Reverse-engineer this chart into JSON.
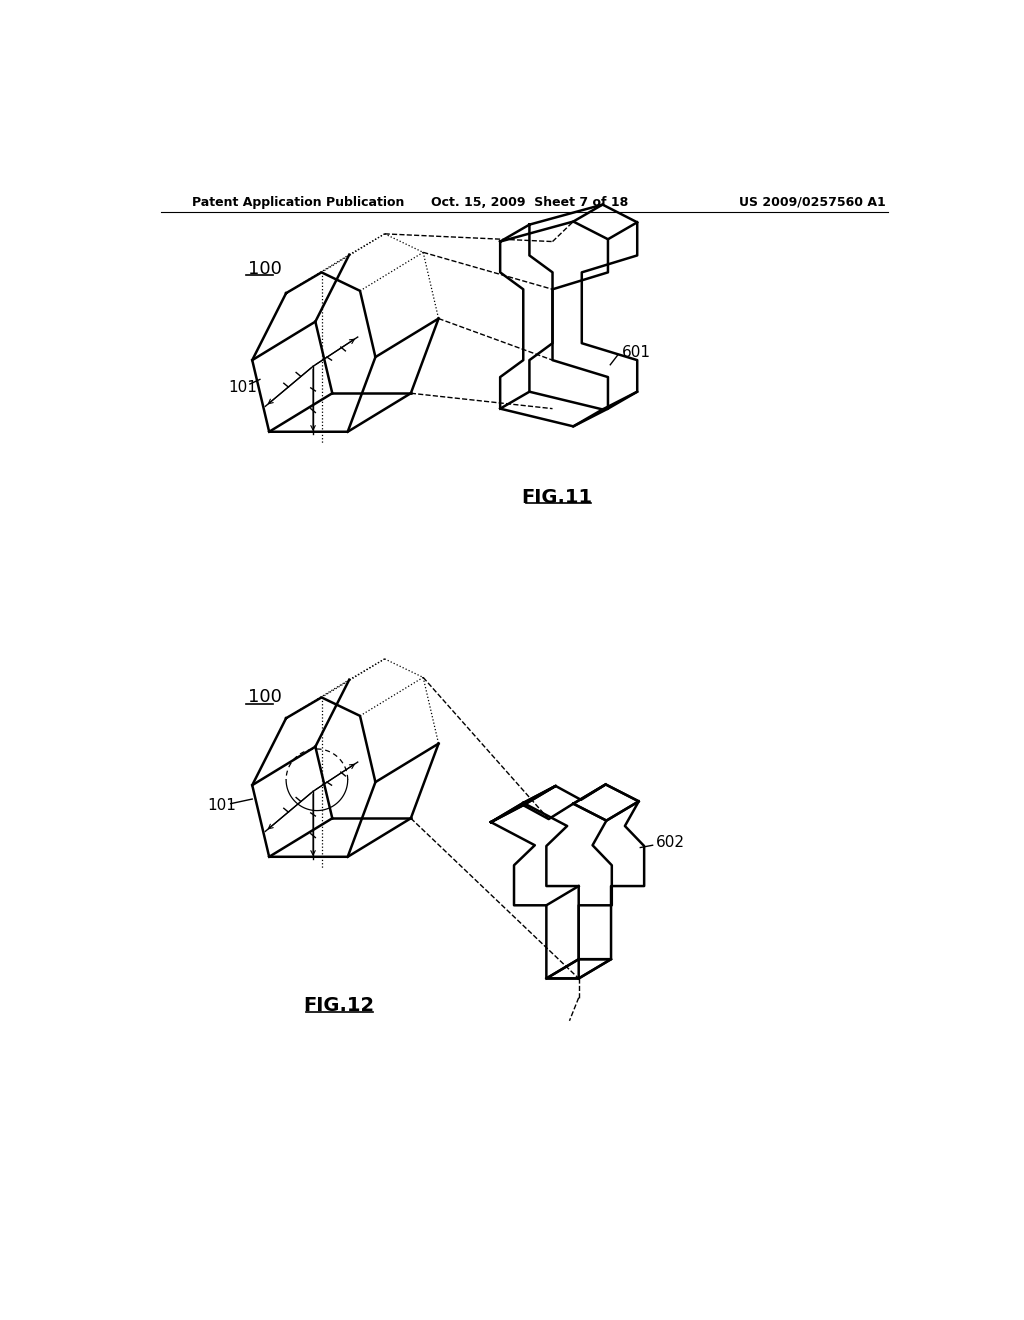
{
  "background_color": "#ffffff",
  "header_left": "Patent Application Publication",
  "header_center": "Oct. 15, 2009  Sheet 7 of 18",
  "header_right": "US 2009/0257560 A1",
  "fig11_label": "FIG.11",
  "fig12_label": "FIG.12",
  "label_100_top": "100",
  "label_101_top": "101",
  "label_601": "601",
  "label_100_bot": "100",
  "label_101_bot": "101",
  "label_602": "602"
}
